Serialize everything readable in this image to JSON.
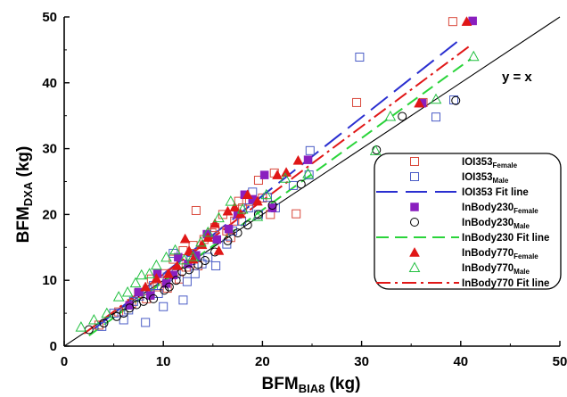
{
  "chart_data": {
    "type": "scatter",
    "title": "",
    "xlabel": {
      "main": "BFM",
      "sub": "BIA8",
      "unit": " (kg)"
    },
    "ylabel": {
      "main": "BFM",
      "sub": "DXA",
      "unit": " (kg)"
    },
    "xlim": [
      0,
      50
    ],
    "ylim": [
      0,
      50
    ],
    "xticks": [
      0,
      10,
      20,
      30,
      40,
      50
    ],
    "yticks": [
      0,
      10,
      20,
      30,
      40,
      50
    ],
    "grid": false,
    "legend_position": "right",
    "annotation": "y = x",
    "identity_line": {
      "x": [
        0,
        50
      ],
      "y": [
        0,
        50
      ],
      "color": "#000000"
    },
    "series": [
      {
        "name": "IOI353",
        "sub": "Female",
        "kind": "points",
        "marker": "square-open",
        "color": "#d9483b",
        "points": [
          [
            3.5,
            3.2
          ],
          [
            5.5,
            5.2
          ],
          [
            6.8,
            6.5
          ],
          [
            7.5,
            8
          ],
          [
            8.3,
            7.2
          ],
          [
            8.8,
            10.2
          ],
          [
            9.4,
            9
          ],
          [
            10,
            11
          ],
          [
            10.4,
            8.8
          ],
          [
            11,
            13.2
          ],
          [
            11.6,
            10.2
          ],
          [
            12,
            14.5
          ],
          [
            12.3,
            12
          ],
          [
            13,
            15.3
          ],
          [
            13.3,
            20.6
          ],
          [
            13.5,
            12.2
          ],
          [
            14.1,
            16.2
          ],
          [
            14.9,
            17.2
          ],
          [
            15.2,
            18
          ],
          [
            16,
            20
          ],
          [
            16.4,
            17.5
          ],
          [
            16.8,
            16.5
          ],
          [
            17.2,
            19
          ],
          [
            17.6,
            22
          ],
          [
            18,
            21
          ],
          [
            18.7,
            22
          ],
          [
            19.6,
            25.2
          ],
          [
            20,
            22.5
          ],
          [
            20.8,
            20
          ],
          [
            21.2,
            26.3
          ],
          [
            23.4,
            20.1
          ],
          [
            29.5,
            37
          ],
          [
            36.2,
            37
          ],
          [
            39.2,
            49.3
          ]
        ]
      },
      {
        "name": "IOI353",
        "sub": "Male",
        "kind": "points",
        "marker": "square-open",
        "color": "#4a5cc6",
        "points": [
          [
            3.8,
            3
          ],
          [
            5,
            5
          ],
          [
            6,
            4
          ],
          [
            6.5,
            5.5
          ],
          [
            7,
            6.8
          ],
          [
            7.6,
            7.6
          ],
          [
            8.2,
            3.6
          ],
          [
            8.4,
            8.6
          ],
          [
            9,
            9.2
          ],
          [
            9.5,
            8
          ],
          [
            10,
            6
          ],
          [
            10.4,
            10.5
          ],
          [
            11,
            14.1
          ],
          [
            11.3,
            11
          ],
          [
            12,
            7
          ],
          [
            12.4,
            9.8
          ],
          [
            12.8,
            13
          ],
          [
            13.2,
            11
          ],
          [
            13.9,
            12.5
          ],
          [
            14.5,
            13.5
          ],
          [
            15.3,
            12.2
          ],
          [
            16.4,
            15.5
          ],
          [
            17,
            17.5
          ],
          [
            17.9,
            19
          ],
          [
            18.6,
            21
          ],
          [
            19,
            23.4
          ],
          [
            19.6,
            20
          ],
          [
            20.5,
            22.6
          ],
          [
            21.3,
            21
          ],
          [
            23.1,
            24.4
          ],
          [
            24.7,
            26
          ],
          [
            24.8,
            29.7
          ],
          [
            29.8,
            43.9
          ],
          [
            37.5,
            34.8
          ],
          [
            39.3,
            37.4
          ]
        ]
      },
      {
        "name": "IOI353 Fit line",
        "kind": "line",
        "dash": "long",
        "color": "#2a2fd0",
        "x": [
          3,
          40.2
        ],
        "y": [
          2.6,
          46.9
        ]
      },
      {
        "name": "InBody230",
        "sub": "Female",
        "kind": "points",
        "marker": "square-filled",
        "color": "#8a1fbf",
        "points": [
          [
            6.6,
            6.2
          ],
          [
            7.5,
            8.2
          ],
          [
            8.7,
            7.7
          ],
          [
            9.4,
            11
          ],
          [
            10.3,
            9.5
          ],
          [
            11,
            10.8
          ],
          [
            11.5,
            13.5
          ],
          [
            12.5,
            12.5
          ],
          [
            13.3,
            13.8
          ],
          [
            14.4,
            17
          ],
          [
            15.4,
            16.2
          ],
          [
            16.6,
            17.8
          ],
          [
            17.5,
            20
          ],
          [
            18.2,
            23
          ],
          [
            19,
            22.3
          ],
          [
            20.2,
            26
          ],
          [
            21,
            21
          ],
          [
            24.6,
            28.3
          ],
          [
            36.1,
            36.9
          ],
          [
            41.2,
            49.4
          ]
        ]
      },
      {
        "name": "InBody230",
        "sub": "Male",
        "kind": "points",
        "marker": "circle-open",
        "color": "#000000",
        "points": [
          [
            2.5,
            2.5
          ],
          [
            4,
            3.5
          ],
          [
            5.3,
            4.5
          ],
          [
            6,
            5
          ],
          [
            6.6,
            5.8
          ],
          [
            7.3,
            6.3
          ],
          [
            8,
            6.8
          ],
          [
            9,
            7.2
          ],
          [
            10.1,
            8.5
          ],
          [
            10.6,
            9
          ],
          [
            11.3,
            10
          ],
          [
            11.9,
            11.3
          ],
          [
            12.6,
            11.6
          ],
          [
            13.5,
            12.4
          ],
          [
            14.2,
            13
          ],
          [
            15.2,
            14.3
          ],
          [
            16.5,
            16
          ],
          [
            17.5,
            17.2
          ],
          [
            18.5,
            18.4
          ],
          [
            19.6,
            20
          ],
          [
            21,
            21.4
          ],
          [
            23.9,
            24.6
          ],
          [
            31.5,
            29.8
          ],
          [
            34.1,
            34.9
          ],
          [
            39.5,
            37.3
          ]
        ]
      },
      {
        "name": "InBody230 Fit line",
        "kind": "line",
        "dash": "long-light",
        "color": "#2ad43a",
        "x": [
          2.5,
          41
        ],
        "y": [
          1.6,
          43.6
        ]
      },
      {
        "name": "InBody770",
        "sub": "Female",
        "kind": "points",
        "marker": "triangle-filled",
        "color": "#e01717",
        "points": [
          [
            8.2,
            9
          ],
          [
            9.3,
            10.3
          ],
          [
            10.5,
            11
          ],
          [
            11.4,
            12.2
          ],
          [
            12.2,
            16.3
          ],
          [
            12.6,
            14.5
          ],
          [
            13,
            13.2
          ],
          [
            13.9,
            15.4
          ],
          [
            14.5,
            16.5
          ],
          [
            15.2,
            18.6
          ],
          [
            15.6,
            14.5
          ],
          [
            16.5,
            20.5
          ],
          [
            17.2,
            21.1
          ],
          [
            17.8,
            20.1
          ],
          [
            18.5,
            23
          ],
          [
            19.5,
            22
          ],
          [
            21.5,
            26
          ],
          [
            22.4,
            26.4
          ],
          [
            23.6,
            28.2
          ],
          [
            35.8,
            36.9
          ],
          [
            40.6,
            49.3
          ]
        ]
      },
      {
        "name": "InBody770",
        "sub": "Male",
        "kind": "points",
        "marker": "triangle-open",
        "color": "#22c040",
        "points": [
          [
            1.7,
            2.9
          ],
          [
            3,
            4
          ],
          [
            4.3,
            5
          ],
          [
            5.5,
            7.5
          ],
          [
            6.4,
            8.2
          ],
          [
            7.2,
            9.6
          ],
          [
            7.8,
            10.8
          ],
          [
            8.6,
            11
          ],
          [
            9.3,
            12.3
          ],
          [
            10.3,
            13.5
          ],
          [
            11.2,
            14.6
          ],
          [
            12.1,
            13.1
          ],
          [
            13,
            13.6
          ],
          [
            13.8,
            15.8
          ],
          [
            14.5,
            17.3
          ],
          [
            15.6,
            19.5
          ],
          [
            16.8,
            22
          ],
          [
            18,
            20.8
          ],
          [
            19.5,
            19.7
          ],
          [
            20.4,
            23
          ],
          [
            22.3,
            25.5
          ],
          [
            24.6,
            26.2
          ],
          [
            31.4,
            29.7
          ],
          [
            32.9,
            34.9
          ],
          [
            37.5,
            37.5
          ],
          [
            41.3,
            44
          ]
        ]
      },
      {
        "name": "InBody770 Fit line",
        "kind": "line",
        "dash": "dash-dot",
        "color": "#e01717",
        "x": [
          2,
          41
        ],
        "y": [
          1.9,
          45.7
        ]
      }
    ]
  }
}
